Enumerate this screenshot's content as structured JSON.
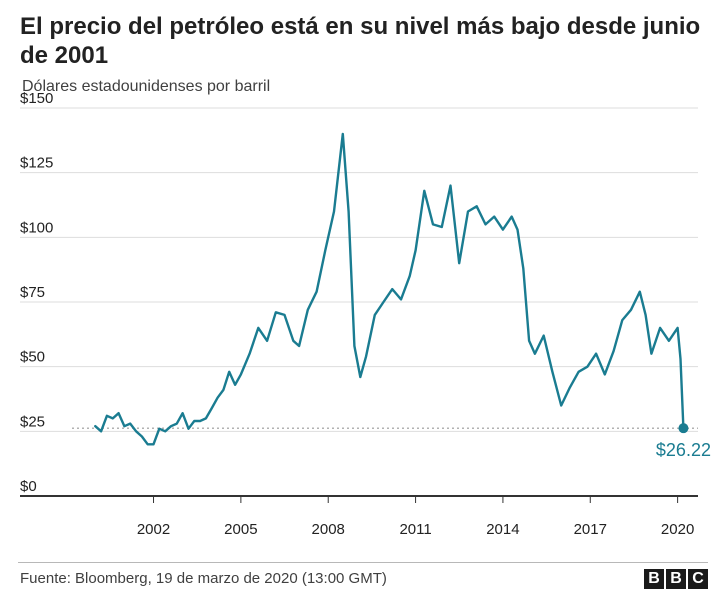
{
  "title": "El precio del petróleo está en su nivel más bajo desde junio de 2001",
  "subtitle": "Dólares estadounidenses por barril",
  "source": "Fuente: Bloomberg, 19 de marzo de 2020 (13:00 GMT)",
  "logo": [
    "B",
    "B",
    "C"
  ],
  "colors": {
    "line": "#1a7c91",
    "grid": "#dddddd",
    "axis": "#333333",
    "reference": "#999999",
    "text": "#222222"
  },
  "chart_data": {
    "type": "line",
    "ylim": [
      0,
      150
    ],
    "yticks": [
      0,
      25,
      50,
      75,
      100,
      125,
      150
    ],
    "ytick_labels": [
      "$0",
      "$25",
      "$50",
      "$75",
      "$100",
      "$125",
      "$150"
    ],
    "xlim": [
      1999.2,
      2020.7
    ],
    "xticks": [
      2002,
      2005,
      2008,
      2011,
      2014,
      2017,
      2020
    ],
    "xtick_labels": [
      "2002",
      "2005",
      "2008",
      "2011",
      "2014",
      "2017",
      "2020"
    ],
    "grid": true,
    "reference_line": {
      "y": 26.22,
      "style": "dotted"
    },
    "last_point_label": "$26.22",
    "series": [
      {
        "x": [
          2000.0,
          2000.2,
          2000.4,
          2000.6,
          2000.8,
          2001.0,
          2001.2,
          2001.4,
          2001.6,
          2001.8,
          2002.0,
          2002.2,
          2002.4,
          2002.6,
          2002.8,
          2003.0,
          2003.2,
          2003.4,
          2003.6,
          2003.8,
          2004.0,
          2004.2,
          2004.4,
          2004.6,
          2004.8,
          2005.0,
          2005.3,
          2005.6,
          2005.9,
          2006.2,
          2006.5,
          2006.8,
          2007.0,
          2007.3,
          2007.6,
          2007.9,
          2008.2,
          2008.5,
          2008.7,
          2008.9,
          2009.1,
          2009.3,
          2009.6,
          2009.9,
          2010.2,
          2010.5,
          2010.8,
          2011.0,
          2011.3,
          2011.6,
          2011.9,
          2012.2,
          2012.5,
          2012.8,
          2013.1,
          2013.4,
          2013.7,
          2014.0,
          2014.3,
          2014.5,
          2014.7,
          2014.9,
          2015.1,
          2015.4,
          2015.7,
          2016.0,
          2016.3,
          2016.6,
          2016.9,
          2017.2,
          2017.5,
          2017.8,
          2018.1,
          2018.4,
          2018.7,
          2018.9,
          2019.1,
          2019.4,
          2019.7,
          2020.0,
          2020.1,
          2020.2
        ],
        "values": [
          27,
          25,
          31,
          30,
          32,
          27,
          28,
          25,
          23,
          20,
          20,
          26,
          25,
          27,
          28,
          32,
          26,
          29,
          29,
          30,
          34,
          38,
          41,
          48,
          43,
          47,
          55,
          65,
          60,
          71,
          70,
          60,
          58,
          72,
          79,
          95,
          110,
          140,
          110,
          58,
          46,
          54,
          70,
          75,
          80,
          76,
          85,
          95,
          118,
          105,
          104,
          120,
          90,
          110,
          112,
          105,
          108,
          103,
          108,
          103,
          88,
          60,
          55,
          62,
          48,
          35,
          42,
          48,
          50,
          55,
          47,
          56,
          68,
          72,
          79,
          70,
          55,
          65,
          60,
          65,
          53,
          26.22
        ]
      }
    ]
  }
}
